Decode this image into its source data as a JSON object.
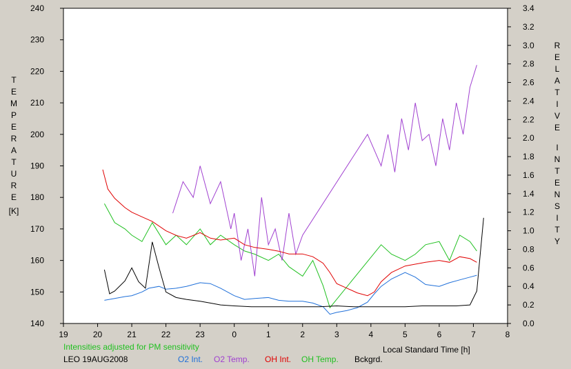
{
  "chart_data": {
    "type": "line",
    "xlabel": "Local Standard Time [h]",
    "xlim": [
      19,
      8
    ],
    "x_ticks": [
      "19",
      "20",
      "21",
      "22",
      "23",
      "0",
      "1",
      "2",
      "3",
      "4",
      "5",
      "6",
      "7",
      "8"
    ],
    "y_left": {
      "label_letters": [
        "T",
        "E",
        "M",
        "P",
        "E",
        "R",
        "A",
        "T",
        "U",
        "R",
        "E"
      ],
      "unit": "[K]",
      "ylim": [
        140,
        240
      ],
      "ticks": [
        "140",
        "150",
        "160",
        "170",
        "180",
        "190",
        "200",
        "210",
        "220",
        "230",
        "240"
      ]
    },
    "y_right": {
      "label_letters": [
        "R",
        "E",
        "L",
        "A",
        "T",
        "I",
        "V",
        "E"
      ],
      "label_letters2": [
        "I",
        "N",
        "T",
        "E",
        "N",
        "S",
        "I",
        "T",
        "Y"
      ],
      "ylim": [
        0.0,
        3.4
      ],
      "ticks": [
        "0.0",
        "0.2",
        "0.4",
        "0.6",
        "0.8",
        "1.0",
        "1.2",
        "1.4",
        "1.6",
        "1.8",
        "2.0",
        "2.2",
        "2.4",
        "2.6",
        "2.8",
        "3.0",
        "3.2",
        "3.4"
      ]
    },
    "note": "Intensities adjusted for PM sensitivity",
    "station": "LEO 19AUG2008",
    "colors": {
      "o2int": "#1e6fd9",
      "o2temp": "#a040d0",
      "ohint": "#e00000",
      "ohtemp": "#20c020",
      "bck": "#000000",
      "note": "#20c020"
    },
    "series": [
      {
        "name": "O2 Int.",
        "axis": "right",
        "color": "#1e6fd9",
        "x": [
          20.2,
          20.5,
          20.8,
          21.0,
          21.3,
          21.5,
          21.8,
          22.0,
          22.3,
          22.6,
          23.0,
          23.3,
          23.6,
          0.0,
          0.3,
          0.6,
          1.0,
          1.3,
          1.6,
          2.0,
          2.3,
          2.6,
          2.8,
          3.0,
          3.3,
          3.6,
          3.9,
          4.1,
          4.3,
          4.6,
          5.0,
          5.3,
          5.6,
          6.0,
          6.3,
          6.6,
          6.9,
          7.1
        ],
        "y": [
          0.25,
          0.27,
          0.29,
          0.3,
          0.34,
          0.38,
          0.4,
          0.37,
          0.38,
          0.4,
          0.44,
          0.43,
          0.38,
          0.3,
          0.26,
          0.27,
          0.28,
          0.25,
          0.24,
          0.24,
          0.22,
          0.18,
          0.1,
          0.12,
          0.14,
          0.17,
          0.23,
          0.32,
          0.4,
          0.48,
          0.55,
          0.5,
          0.42,
          0.4,
          0.44,
          0.47,
          0.5,
          0.52
        ]
      },
      {
        "name": "O2 Temp.",
        "axis": "left",
        "color": "#a040d0",
        "x": [
          22.2,
          22.5,
          22.8,
          23.0,
          23.3,
          23.6,
          23.9,
          0.0,
          0.2,
          0.4,
          0.6,
          0.8,
          1.0,
          1.2,
          1.4,
          1.6,
          1.8,
          2.0,
          3.9,
          4.1,
          4.3,
          4.5,
          4.7,
          4.9,
          5.1,
          5.3,
          5.5,
          5.7,
          5.9,
          6.1,
          6.3,
          6.5,
          6.7,
          6.9,
          7.1
        ],
        "y": [
          175,
          185,
          180,
          190,
          178,
          185,
          170,
          175,
          160,
          170,
          155,
          180,
          165,
          170,
          160,
          175,
          162,
          168,
          200,
          195,
          190,
          200,
          188,
          205,
          195,
          210,
          198,
          200,
          190,
          205,
          195,
          210,
          200,
          215,
          222
        ]
      },
      {
        "name": "OH Int.",
        "axis": "right",
        "color": "#e00000",
        "x": [
          20.15,
          20.3,
          20.5,
          20.8,
          21.0,
          21.3,
          21.6,
          22.0,
          22.3,
          22.6,
          23.0,
          23.3,
          23.6,
          0.0,
          0.3,
          0.6,
          1.0,
          1.3,
          1.6,
          2.0,
          2.3,
          2.6,
          2.8,
          3.0,
          3.3,
          3.6,
          3.9,
          4.1,
          4.3,
          4.6,
          5.0,
          5.3,
          5.6,
          6.0,
          6.3,
          6.6,
          6.9,
          7.1
        ],
        "y": [
          1.66,
          1.45,
          1.35,
          1.25,
          1.2,
          1.15,
          1.1,
          1.0,
          0.95,
          0.92,
          0.98,
          0.92,
          0.9,
          0.92,
          0.85,
          0.82,
          0.8,
          0.78,
          0.75,
          0.75,
          0.72,
          0.65,
          0.55,
          0.43,
          0.38,
          0.33,
          0.3,
          0.34,
          0.45,
          0.55,
          0.62,
          0.64,
          0.66,
          0.68,
          0.66,
          0.72,
          0.7,
          0.66
        ]
      },
      {
        "name": "OH Temp.",
        "axis": "left",
        "color": "#20c020",
        "x": [
          20.2,
          20.5,
          20.8,
          21.0,
          21.3,
          21.6,
          22.0,
          22.3,
          22.6,
          23.0,
          23.3,
          23.6,
          0.0,
          0.3,
          0.6,
          1.0,
          1.3,
          1.6,
          2.0,
          2.3,
          2.6,
          2.8,
          4.3,
          4.6,
          5.0,
          5.3,
          5.6,
          6.0,
          6.3,
          6.6,
          6.9,
          7.1
        ],
        "y": [
          178,
          172,
          170,
          168,
          166,
          172,
          165,
          168,
          165,
          170,
          165,
          168,
          165,
          163,
          162,
          160,
          162,
          158,
          155,
          160,
          152,
          145,
          165,
          162,
          160,
          162,
          165,
          166,
          160,
          168,
          166,
          163
        ]
      },
      {
        "name": "Bckgrd.",
        "axis": "right",
        "color": "#000000",
        "x": [
          20.2,
          20.35,
          20.5,
          20.8,
          21.0,
          21.2,
          21.4,
          21.6,
          21.8,
          22.0,
          22.3,
          22.6,
          23.0,
          23.3,
          23.6,
          0.0,
          0.5,
          1.0,
          1.5,
          2.0,
          2.5,
          3.0,
          3.5,
          4.0,
          4.5,
          5.0,
          5.5,
          6.0,
          6.5,
          6.9,
          7.1,
          7.2,
          7.3
        ],
        "y": [
          0.58,
          0.32,
          0.35,
          0.46,
          0.6,
          0.45,
          0.38,
          0.88,
          0.6,
          0.34,
          0.28,
          0.26,
          0.24,
          0.22,
          0.2,
          0.19,
          0.18,
          0.18,
          0.18,
          0.18,
          0.18,
          0.19,
          0.18,
          0.18,
          0.18,
          0.18,
          0.19,
          0.19,
          0.19,
          0.2,
          0.35,
          0.75,
          1.14
        ]
      }
    ]
  }
}
